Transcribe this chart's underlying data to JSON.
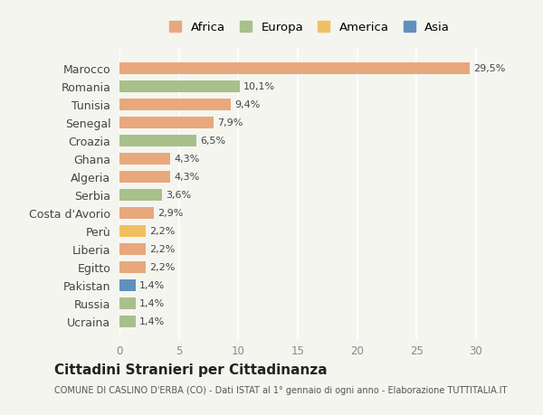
{
  "countries": [
    "Marocco",
    "Romania",
    "Tunisia",
    "Senegal",
    "Croazia",
    "Ghana",
    "Algeria",
    "Serbia",
    "Costa d'Avorio",
    "Perù",
    "Liberia",
    "Egitto",
    "Pakistan",
    "Russia",
    "Ucraina"
  ],
  "values": [
    29.5,
    10.1,
    9.4,
    7.9,
    6.5,
    4.3,
    4.3,
    3.6,
    2.9,
    2.2,
    2.2,
    2.2,
    1.4,
    1.4,
    1.4
  ],
  "labels": [
    "29,5%",
    "10,1%",
    "9,4%",
    "7,9%",
    "6,5%",
    "4,3%",
    "4,3%",
    "3,6%",
    "2,9%",
    "2,2%",
    "2,2%",
    "2,2%",
    "1,4%",
    "1,4%",
    "1,4%"
  ],
  "continents": [
    "Africa",
    "Europa",
    "Africa",
    "Africa",
    "Europa",
    "Africa",
    "Africa",
    "Europa",
    "Africa",
    "America",
    "Africa",
    "Africa",
    "Asia",
    "Europa",
    "Europa"
  ],
  "continent_colors": {
    "Africa": "#E8A87C",
    "Europa": "#A8C08A",
    "America": "#F0C060",
    "Asia": "#6090C0"
  },
  "legend_order": [
    "Africa",
    "Europa",
    "America",
    "Asia"
  ],
  "xlim": [
    0,
    32
  ],
  "xticks": [
    0,
    5,
    10,
    15,
    20,
    25,
    30
  ],
  "title": "Cittadini Stranieri per Cittadinanza",
  "subtitle": "COMUNE DI CASLINO D'ERBA (CO) - Dati ISTAT al 1° gennaio di ogni anno - Elaborazione TUTTITALIA.IT",
  "bg_color": "#f5f5f0",
  "bar_height": 0.65
}
